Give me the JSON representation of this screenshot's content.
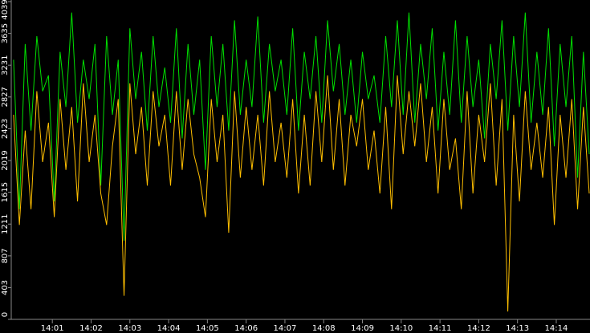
{
  "chart_data": {
    "type": "line",
    "x": [
      0,
      0.15,
      0.3,
      0.45,
      0.6,
      0.75,
      0.9,
      1.05,
      1.2,
      1.35,
      1.5,
      1.65,
      1.8,
      1.95,
      2.1,
      2.25,
      2.4,
      2.55,
      2.7,
      2.85,
      3,
      3.15,
      3.3,
      3.45,
      3.6,
      3.75,
      3.9,
      4.05,
      4.2,
      4.35,
      4.5,
      4.65,
      4.8,
      4.95,
      5.1,
      5.25,
      5.4,
      5.55,
      5.7,
      5.85,
      6,
      6.15,
      6.3,
      6.45,
      6.6,
      6.75,
      6.9,
      7.05,
      7.2,
      7.35,
      7.5,
      7.65,
      7.8,
      7.95,
      8.1,
      8.25,
      8.4,
      8.55,
      8.7,
      8.85,
      9,
      9.15,
      9.3,
      9.45,
      9.6,
      9.75,
      9.9,
      10.05,
      10.2,
      10.35,
      10.5,
      10.65,
      10.8,
      10.95,
      11.1,
      11.25,
      11.4,
      11.55,
      11.7,
      11.85,
      12,
      12.15,
      12.3,
      12.45,
      12.6,
      12.75,
      12.9,
      13.05,
      13.2,
      13.35,
      13.5,
      13.65,
      13.8,
      13.95,
      14.1,
      14.25,
      14.4,
      14.55,
      14.7,
      14.85
    ],
    "series": [
      {
        "color": "#00e000",
        "values": [
          3300,
          1400,
          3500,
          2400,
          3600,
          2900,
          3100,
          1500,
          3400,
          2700,
          3900,
          2500,
          3300,
          2800,
          3500,
          1700,
          3600,
          2600,
          3300,
          1000,
          3700,
          2800,
          3400,
          2400,
          3600,
          2700,
          3200,
          2500,
          3700,
          2300,
          3500,
          2600,
          3300,
          1900,
          3600,
          2700,
          3500,
          2400,
          3800,
          2600,
          3300,
          2700,
          3850,
          2500,
          3500,
          2900,
          3300,
          2600,
          3700,
          2400,
          3400,
          2800,
          3600,
          2500,
          3800,
          2900,
          3500,
          2600,
          3300,
          2500,
          3400,
          2800,
          3100,
          2500,
          3600,
          2700,
          3800,
          2600,
          3900,
          2500,
          3500,
          2800,
          3700,
          2400,
          3400,
          2600,
          3800,
          2500,
          3600,
          2700,
          3300,
          2300,
          3500,
          2800,
          3800,
          2400,
          3600,
          2700,
          3900,
          2500,
          3400,
          2600,
          3700,
          2200,
          3500,
          2700,
          3600,
          1800,
          3400,
          2100
        ]
      },
      {
        "color": "#ffbf00",
        "values": [
          2600,
          1200,
          2400,
          1400,
          2900,
          2000,
          2500,
          1300,
          2800,
          1900,
          2700,
          1500,
          3000,
          2000,
          2600,
          1600,
          1200,
          2200,
          2800,
          300,
          3000,
          2100,
          2700,
          1700,
          2900,
          2200,
          2600,
          1700,
          2900,
          1900,
          2800,
          2100,
          1800,
          1300,
          2800,
          2000,
          2600,
          1100,
          2900,
          1800,
          2700,
          1900,
          2600,
          1700,
          2900,
          2000,
          2500,
          1800,
          2800,
          1600,
          2600,
          1700,
          2900,
          2000,
          3100,
          1900,
          2800,
          1700,
          2600,
          2200,
          2800,
          1900,
          2400,
          1600,
          2700,
          1400,
          3100,
          2100,
          2900,
          2200,
          3000,
          2000,
          2700,
          1600,
          2800,
          1900,
          2300,
          1400,
          2900,
          1600,
          2600,
          2000,
          3000,
          1700,
          2800,
          100,
          2600,
          1500,
          2900,
          1900,
          2500,
          1800,
          2700,
          1200,
          2600,
          1800,
          2800,
          1400,
          2700,
          1600
        ]
      }
    ],
    "xlim": [
      -0.06,
      14.87
    ],
    "xticks": [
      {
        "value": 1,
        "label": "14:01"
      },
      {
        "value": 2,
        "label": "14:02"
      },
      {
        "value": 3,
        "label": "14:03"
      },
      {
        "value": 4,
        "label": "14:04"
      },
      {
        "value": 5,
        "label": "14:05"
      },
      {
        "value": 6,
        "label": "14:06"
      },
      {
        "value": 7,
        "label": "14:07"
      },
      {
        "value": 8,
        "label": "14:08"
      },
      {
        "value": 9,
        "label": "14:09"
      },
      {
        "value": 10,
        "label": "14:10"
      },
      {
        "value": 11,
        "label": "14:11"
      },
      {
        "value": 12,
        "label": "14:12"
      },
      {
        "value": 13,
        "label": "14:13"
      },
      {
        "value": 14,
        "label": "14:14"
      }
    ],
    "ylim": [
      0,
      4039
    ],
    "yticks": [
      0,
      403,
      807,
      1211,
      1615,
      2019,
      2423,
      2827,
      3231,
      3635,
      4039
    ]
  }
}
